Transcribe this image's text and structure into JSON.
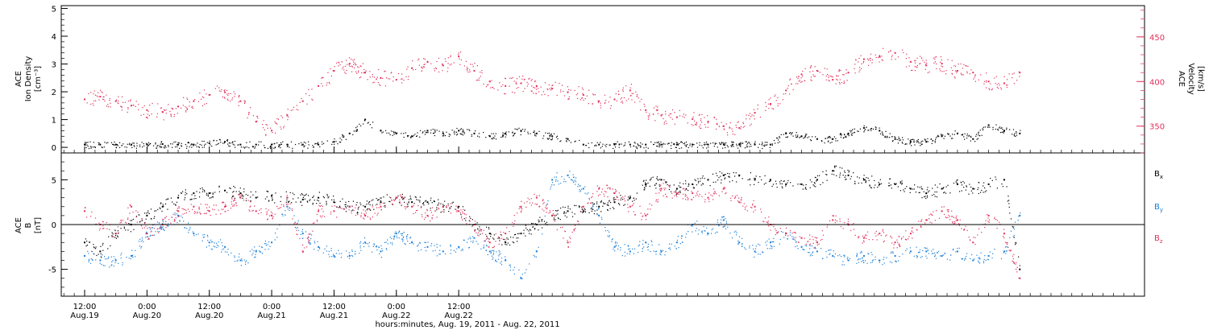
{
  "chart_data": [
    {
      "type": "scatter",
      "panel": "top",
      "ylabel": [
        "ACE",
        "Ion Density",
        "[cm⁻³]"
      ],
      "ylim": [
        -0.2,
        5.1
      ],
      "yticks": [
        0,
        1,
        2,
        3,
        4,
        5
      ],
      "y2label": [
        "ACE",
        "Velocity",
        "[km/s]"
      ],
      "y2lim": [
        320,
        485
      ],
      "y2ticks": [
        350,
        400,
        450
      ],
      "colors": {
        "density": "#000000",
        "velocity": "#e0305a"
      },
      "series": [
        {
          "name": "Ion Density",
          "axis": "left",
          "color": "#000000",
          "x": [
            0,
            3,
            6,
            9,
            12,
            15,
            18,
            21,
            24,
            27,
            30,
            33,
            36,
            39,
            42,
            45,
            48,
            51,
            54,
            57,
            60,
            63,
            66,
            69,
            72,
            75,
            78,
            81,
            84,
            87,
            90,
            93,
            96,
            99,
            102,
            105,
            108,
            111,
            114,
            117,
            120,
            123,
            126,
            129,
            132,
            135,
            138,
            141,
            144,
            147,
            150,
            153,
            156,
            159,
            162,
            165,
            168,
            171,
            174,
            177,
            180
          ],
          "y": [
            0.1,
            0.1,
            0.1,
            0.1,
            0.1,
            0.12,
            0.1,
            0.1,
            0.15,
            0.2,
            0.1,
            0.1,
            0.1,
            0.1,
            0.1,
            0.1,
            0.2,
            0.5,
            1.0,
            0.6,
            0.5,
            0.4,
            0.6,
            0.5,
            0.6,
            0.5,
            0.4,
            0.5,
            0.6,
            0.5,
            0.4,
            0.3,
            0.1,
            0.1,
            0.1,
            0.1,
            0.1,
            0.1,
            0.1,
            0.1,
            0.1,
            0.1,
            0.1,
            0.1,
            0.1,
            0.5,
            0.4,
            0.3,
            0.3,
            0.5,
            0.7,
            0.6,
            0.3,
            0.2,
            0.2,
            0.4,
            0.5,
            0.3,
            0.8,
            0.6,
            0.5
          ]
        },
        {
          "name": "Velocity",
          "axis": "right",
          "color": "#e0305a",
          "x": [
            0,
            3,
            6,
            9,
            12,
            15,
            18,
            21,
            24,
            27,
            30,
            33,
            36,
            39,
            42,
            45,
            48,
            51,
            54,
            57,
            60,
            63,
            66,
            69,
            72,
            75,
            78,
            81,
            84,
            87,
            90,
            93,
            96,
            99,
            102,
            105,
            108,
            111,
            114,
            117,
            120,
            123,
            126,
            129,
            132,
            135,
            138,
            141,
            144,
            147,
            150,
            153,
            156,
            159,
            162,
            165,
            168,
            171,
            174,
            177,
            180
          ],
          "y": [
            380,
            383,
            378,
            373,
            368,
            366,
            372,
            378,
            385,
            388,
            378,
            355,
            345,
            362,
            378,
            395,
            412,
            420,
            410,
            404,
            402,
            415,
            422,
            418,
            428,
            412,
            400,
            395,
            398,
            395,
            392,
            388,
            385,
            378,
            380,
            390,
            368,
            362,
            360,
            358,
            355,
            350,
            348,
            365,
            375,
            390,
            408,
            412,
            402,
            410,
            425,
            428,
            432,
            422,
            418,
            420,
            412,
            410,
            400,
            398,
            410
          ]
        }
      ]
    },
    {
      "type": "scatter",
      "panel": "bottom",
      "ylabel": [
        "ACE",
        "B",
        "[nT]"
      ],
      "ylim": [
        -8,
        8
      ],
      "yticks": [
        -5,
        0,
        5
      ],
      "zero_line": true,
      "legend_position": "right",
      "series": [
        {
          "name": "B",
          "subscript": "x",
          "color": "#000000",
          "x": [
            0,
            3,
            6,
            9,
            12,
            15,
            18,
            21,
            24,
            27,
            30,
            33,
            36,
            39,
            42,
            45,
            48,
            51,
            54,
            57,
            60,
            63,
            66,
            69,
            72,
            75,
            78,
            81,
            84,
            87,
            90,
            93,
            96,
            99,
            102,
            105,
            108,
            111,
            114,
            117,
            120,
            123,
            126,
            129,
            132,
            135,
            138,
            141,
            144,
            147,
            150,
            153,
            156,
            159,
            162,
            165,
            168,
            171,
            174,
            177,
            180
          ],
          "y": [
            -2,
            -3,
            -1,
            0,
            1,
            2,
            3,
            3.5,
            3.5,
            3.8,
            3.5,
            3.0,
            3.2,
            3.0,
            2.8,
            3.0,
            2.5,
            2.0,
            2.0,
            2.5,
            3.0,
            2.5,
            2.5,
            2.0,
            2.0,
            0,
            -1,
            -2,
            -1,
            0,
            1.0,
            1.5,
            1.5,
            2.0,
            2.5,
            3.0,
            4.5,
            5.0,
            4.0,
            4.5,
            5.0,
            5.5,
            5.5,
            5.0,
            5.0,
            4.5,
            4.5,
            5.0,
            6.0,
            5.5,
            5.0,
            4.5,
            4.5,
            4.0,
            3.5,
            4.0,
            4.5,
            4.0,
            4.5,
            5.0,
            -5.0
          ]
        },
        {
          "name": "B",
          "subscript": "y",
          "color": "#1a7fd8",
          "x": [
            0,
            3,
            6,
            9,
            12,
            15,
            18,
            21,
            24,
            27,
            30,
            33,
            36,
            39,
            42,
            45,
            48,
            51,
            54,
            57,
            60,
            63,
            66,
            69,
            72,
            75,
            78,
            81,
            84,
            87,
            90,
            93,
            96,
            99,
            102,
            105,
            108,
            111,
            114,
            117,
            120,
            123,
            126,
            129,
            132,
            135,
            138,
            141,
            144,
            147,
            150,
            153,
            156,
            159,
            162,
            165,
            168,
            171,
            174,
            177,
            180
          ],
          "y": [
            -3.5,
            -4,
            -4,
            -3.5,
            -1.0,
            0,
            1.0,
            -1.0,
            -2.0,
            -2.5,
            -4.0,
            -3.0,
            -2.0,
            2.0,
            -1.0,
            -2.5,
            -3.5,
            -3.5,
            -2.0,
            -3.0,
            -1.0,
            -2.0,
            -2.5,
            -3.0,
            -2.5,
            -1.5,
            -3.0,
            -4.0,
            -6.0,
            -3.0,
            5.0,
            5.5,
            4.0,
            1.0,
            -2.5,
            -3.0,
            -2.0,
            -3.0,
            -2.0,
            0,
            -1.0,
            0.5,
            -2.0,
            -3.0,
            -2.0,
            -1.0,
            -2.5,
            -3.0,
            -3.5,
            -4.0,
            -3.5,
            -4.0,
            -3.5,
            -3.0,
            -3.0,
            -3.5,
            -3.0,
            -4.0,
            -3.5,
            -3.0,
            1.0
          ]
        },
        {
          "name": "B",
          "subscript": "z",
          "color": "#e0305a",
          "x": [
            0,
            3,
            6,
            9,
            12,
            15,
            18,
            21,
            24,
            27,
            30,
            33,
            36,
            39,
            42,
            45,
            48,
            51,
            54,
            57,
            60,
            63,
            66,
            69,
            72,
            75,
            78,
            81,
            84,
            87,
            90,
            93,
            96,
            99,
            102,
            105,
            108,
            111,
            114,
            117,
            120,
            123,
            126,
            129,
            132,
            135,
            138,
            141,
            144,
            147,
            150,
            153,
            156,
            159,
            162,
            165,
            168,
            171,
            174,
            177,
            180
          ],
          "y": [
            1.5,
            0,
            -1.0,
            2.0,
            -1.0,
            0,
            1.5,
            2.0,
            1.5,
            2.0,
            3.0,
            1.5,
            1.0,
            3.0,
            -3.0,
            1.5,
            1.5,
            2.0,
            1.0,
            2.0,
            3.0,
            2.0,
            1.0,
            2.0,
            1.5,
            0,
            -2.0,
            -1.0,
            2.0,
            3.0,
            1.0,
            -2.0,
            2.0,
            4.0,
            3.5,
            2.0,
            1.0,
            4.0,
            3.5,
            3.5,
            3.0,
            4.0,
            2.5,
            2.0,
            0,
            -1.0,
            -1.5,
            -2.0,
            0.5,
            0,
            -1.5,
            -1.0,
            -2.0,
            -1.0,
            0.5,
            1.5,
            0.5,
            -2.0,
            1.0,
            -1.0,
            -6.0
          ]
        }
      ]
    }
  ],
  "x_axis": {
    "range": [
      -4.5,
      204
    ],
    "ticks": [
      {
        "x": 0,
        "time": "12:00",
        "date": "Aug.19"
      },
      {
        "x": 12,
        "time": "0:00",
        "date": "Aug.20"
      },
      {
        "x": 24,
        "time": "12:00",
        "date": "Aug.20"
      },
      {
        "x": 36,
        "time": "0:00",
        "date": "Aug.21"
      },
      {
        "x": 48,
        "time": "12:00",
        "date": "Aug.21"
      },
      {
        "x": 60,
        "time": "0:00",
        "date": "Aug.22"
      },
      {
        "x": 72,
        "time": "12:00",
        "date": "Aug.22"
      }
    ],
    "label": "hours:minutes, Aug. 19, 2011 - Aug. 22, 2011"
  }
}
